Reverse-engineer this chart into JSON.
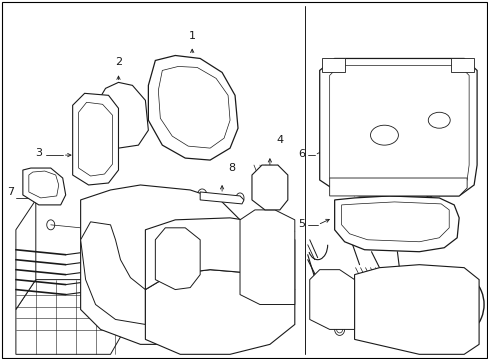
{
  "background_color": "#ffffff",
  "line_color": "#1a1a1a",
  "fig_width": 4.89,
  "fig_height": 3.6,
  "dpi": 100,
  "border_color": "#000000"
}
